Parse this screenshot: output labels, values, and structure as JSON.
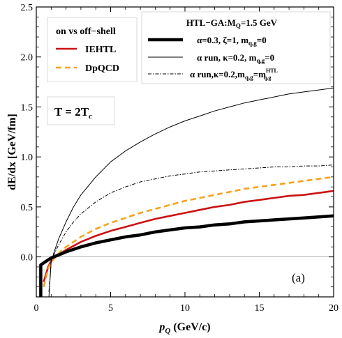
{
  "chart_data": {
    "type": "line",
    "xlabel": "p_Q (GeV/c)",
    "ylabel": "dE/dx [GeV/fm]",
    "xlim": [
      0,
      20
    ],
    "ylim": [
      -0.4,
      2.5
    ],
    "x_ticks": [
      0,
      5,
      10,
      15,
      20
    ],
    "y_ticks": [
      0.0,
      0.5,
      1.0,
      1.5,
      2.0,
      2.5
    ],
    "y_tick_labels": [
      "0.0",
      "0.5",
      "1.0",
      "1.5",
      "2.0",
      "2.5"
    ],
    "panel_label": "(a)",
    "temperature_label": "T = 2T",
    "temperature_sub": "c",
    "legend_left": {
      "title": "on vs off−shell",
      "entries": [
        {
          "name": "IEHTL",
          "color": "#cc1111",
          "style": "solid"
        },
        {
          "name": "DpQCD",
          "color": "#f5a21b",
          "style": "dashed"
        }
      ]
    },
    "legend_right": {
      "title": "HTL−GA:M",
      "title_sub": "Q",
      "title_rest": "=1.5 GeV",
      "entries": [
        {
          "text": "α=0.3, ζ=1, m",
          "sub": "q,g",
          "rest": "=0",
          "style": "thick"
        },
        {
          "text": "α run, κ=0.2, m",
          "sub": "q,g",
          "rest": "=0",
          "style": "thin"
        },
        {
          "text": "α run,κ=0.2,m",
          "sub": "q,g",
          "rest": "=m",
          "sup": "HTL",
          "sub2": "q,g",
          "style": "dashdot"
        }
      ]
    },
    "series": [
      {
        "name": "IEHTL",
        "color": "#cc1111",
        "width": 2.6,
        "dash": "",
        "x": [
          0.5,
          0.8,
          1.0,
          1.3,
          1.6,
          2.0,
          2.5,
          3.0,
          4.0,
          5.0,
          6.0,
          7.0,
          8.0,
          9.0,
          10.0,
          11.0,
          12.0,
          13.0,
          14.0,
          15.0,
          16.0,
          17.0,
          18.0,
          19.0,
          20.0
        ],
        "y": [
          -0.25,
          -0.1,
          -0.04,
          0.0,
          0.03,
          0.07,
          0.11,
          0.15,
          0.21,
          0.26,
          0.3,
          0.34,
          0.38,
          0.41,
          0.44,
          0.47,
          0.5,
          0.52,
          0.55,
          0.57,
          0.59,
          0.61,
          0.62,
          0.64,
          0.66
        ]
      },
      {
        "name": "DpQCD",
        "color": "#f5a21b",
        "width": 2.6,
        "dash": "8,5",
        "x": [
          0.5,
          0.8,
          1.0,
          1.3,
          1.6,
          2.0,
          2.5,
          3.0,
          4.0,
          5.0,
          6.0,
          7.0,
          8.0,
          9.0,
          10.0,
          11.0,
          12.0,
          13.0,
          14.0,
          15.0,
          16.0,
          17.0,
          18.0,
          19.0,
          20.0
        ],
        "y": [
          -0.3,
          -0.12,
          -0.05,
          0.0,
          0.05,
          0.1,
          0.15,
          0.2,
          0.28,
          0.34,
          0.39,
          0.44,
          0.48,
          0.52,
          0.56,
          0.59,
          0.62,
          0.65,
          0.68,
          0.7,
          0.72,
          0.74,
          0.76,
          0.78,
          0.8
        ]
      },
      {
        "name": "α=0.3, ζ=1",
        "color": "#000000",
        "width": 4.5,
        "dash": "",
        "x": [
          0.3,
          0.3,
          0.6,
          1.0,
          1.5,
          2.0,
          3.0,
          4.0,
          5.0,
          6.0,
          7.0,
          8.0,
          9.0,
          10.0,
          11.0,
          12.0,
          13.0,
          14.0,
          15.0,
          16.0,
          17.0,
          18.0,
          19.0,
          20.0
        ],
        "y": [
          -0.4,
          -0.08,
          -0.05,
          -0.01,
          0.02,
          0.05,
          0.1,
          0.14,
          0.17,
          0.2,
          0.22,
          0.25,
          0.27,
          0.29,
          0.3,
          0.32,
          0.33,
          0.35,
          0.36,
          0.37,
          0.38,
          0.39,
          0.4,
          0.41
        ]
      },
      {
        "name": "α run, κ=0.2, m=0",
        "color": "#000000",
        "width": 1.0,
        "dash": "",
        "x": [
          0.85,
          1.0,
          1.2,
          1.5,
          2.0,
          2.5,
          3.0,
          4.0,
          5.0,
          6.0,
          7.0,
          8.0,
          9.0,
          10.0,
          11.0,
          12.0,
          13.0,
          14.0,
          15.0,
          16.0,
          17.0,
          18.0,
          19.0,
          20.0
        ],
        "y": [
          -0.4,
          -0.05,
          0.05,
          0.18,
          0.35,
          0.5,
          0.62,
          0.8,
          0.95,
          1.06,
          1.15,
          1.23,
          1.3,
          1.36,
          1.41,
          1.46,
          1.5,
          1.54,
          1.57,
          1.6,
          1.63,
          1.65,
          1.67,
          1.69
        ]
      },
      {
        "name": "α run, κ=0.2, m=mHTL",
        "color": "#000000",
        "width": 1.0,
        "dash": "5,2,1.5,2",
        "x": [
          0.85,
          1.0,
          1.2,
          1.5,
          2.0,
          2.5,
          3.0,
          4.0,
          5.0,
          6.0,
          7.0,
          8.0,
          9.0,
          10.0,
          11.0,
          12.0,
          13.0,
          14.0,
          15.0,
          16.0,
          17.0,
          18.0,
          19.0,
          20.0
        ],
        "y": [
          -0.35,
          -0.05,
          0.03,
          0.12,
          0.25,
          0.35,
          0.43,
          0.55,
          0.64,
          0.7,
          0.75,
          0.78,
          0.81,
          0.83,
          0.85,
          0.86,
          0.87,
          0.88,
          0.89,
          0.9,
          0.9,
          0.91,
          0.91,
          0.92
        ]
      }
    ]
  }
}
